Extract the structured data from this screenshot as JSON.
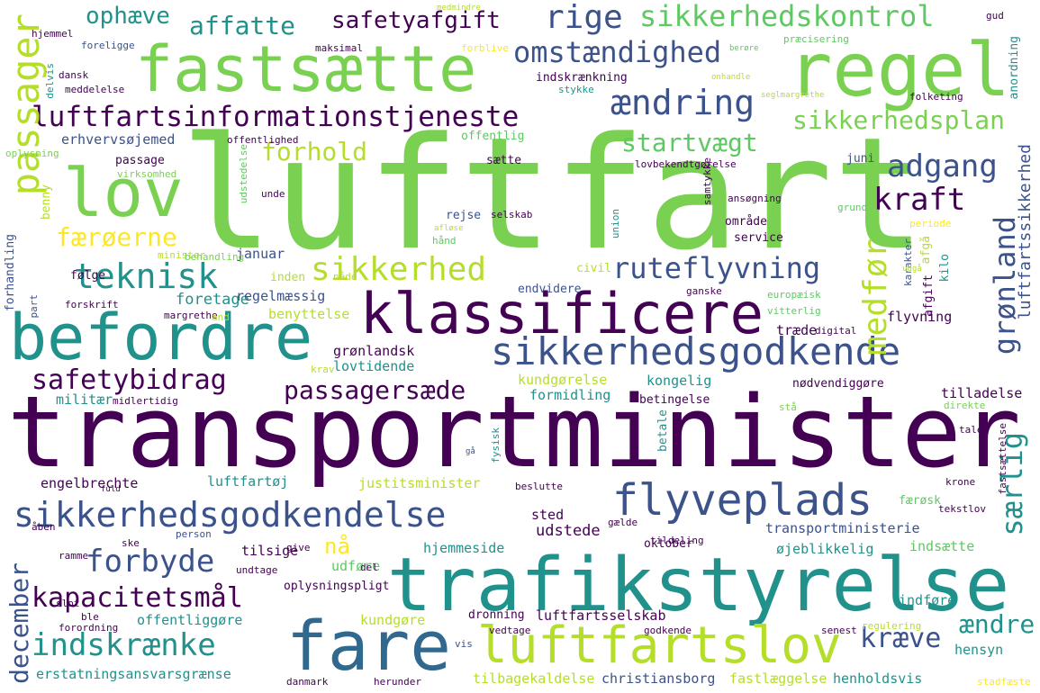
{
  "palette": {
    "dark_purple": "#440154",
    "indigo": "#3b528b",
    "teal": "#21918c",
    "green": "#5ec962",
    "yellow_green": "#7ad151",
    "yellow": "#fde725",
    "light_green": "#b5de2b"
  },
  "words": {
    "luftfart": "luftfart",
    "transportminister": "transportminister",
    "fastsaette": "fastsætte",
    "regel": "regel",
    "lov": "lov",
    "klassificere": "klassificere",
    "befordre": "befordre",
    "trafikstyrelse": "trafikstyrelse",
    "fare": "fare",
    "luftfartslov": "luftfartslov",
    "sikkerhedsgodkende": "sikkerhedsgodkende",
    "sikkerhedsgodkendelse": "sikkerhedsgodkendelse",
    "flyveplads": "flyveplads",
    "luftfartsinformationstjeneste": "luftfartsinformationstjeneste",
    "passager": "passager",
    "omstaendighed": "omstændighed",
    "aendring": "ændring",
    "rige": "rige",
    "sikkerhedskontrol": "sikkerhedskontrol",
    "safetyafgift": "safetyafgift",
    "affatte": "affatte",
    "ophaeve": "ophæve",
    "sikkerhedsplan": "sikkerhedsplan",
    "startvaegt": "startvægt",
    "adgang": "adgang",
    "kraft": "kraft",
    "forhold": "forhold",
    "faeroeerne": "færøerne",
    "teknisk": "teknisk",
    "sikkerhed": "sikkerhed",
    "ruteflyvning": "ruteflyvning",
    "medfoer": "medfør",
    "groenland": "grønland",
    "safetybidrag": "safetybidrag",
    "passagersaede": "passagersæde",
    "forbyde": "forbyde",
    "kapacitetsmaal": "kapacitetsmål",
    "indskraenke": "indskrænke",
    "kraeve": "kræve",
    "aendre": "ændre",
    "saerlig": "særlig",
    "naa": "nå",
    "december": "december",
    "luftfartssikkerhed": "luftfartssikkerhed",
    "erhvervsoejemed": "erhvervsøjemed",
    "offentlighed": "offentlighed",
    "offentlig": "offentlig",
    "oplysning": "oplysning",
    "passage": "passage",
    "saette": "sætte",
    "juni": "juni",
    "lovbekendtgoerelse": "lovbekendtgørelse",
    "virksomhed": "virksomhed",
    "udstedelse": "udstedelse",
    "benny": "benny",
    "unde": "unde",
    "samtykke": "samtykke",
    "ansoegning": "ansøgning",
    "grund": "grund",
    "rejse": "rejse",
    "selskab": "selskab",
    "union": "union",
    "aftale_naaende": "afløse",
    "haand": "hånd",
    "januar": "januar",
    "omraade": "område",
    "service": "service",
    "periode": "periode",
    "karakter": "karakter",
    "forhandling": "forhandling",
    "minister": "minister",
    "behandling": "behandling",
    "afgaa": "afgå",
    "kilo": "kilo",
    "afgift": "afgift",
    "foelge": "følge",
    "inden": "inden",
    "naade": "nåde",
    "civil": "civil",
    "udgaa": "udgå",
    "foretage": "foretage",
    "endvidere": "endvidere",
    "ganske": "ganske",
    "europaeisk": "europæisk",
    "part": "part",
    "forskrift": "forskrift",
    "regelmaessig": "regelmæssig",
    "margrethe": "margrethe",
    "and": "and",
    "benyttelse": "benyttelse",
    "vitterlig": "vitterlig",
    "flyvning": "flyvning",
    "digital": "digital",
    "groenlandsk": "grønlandsk",
    "traede": "træde",
    "lovtidende": "lovtidende",
    "krav": "krav",
    "kundgoerelse": "kundgørelse",
    "kongelig": "kongelig",
    "noedvendiggoere": "nødvendiggøre",
    "militaer": "militær",
    "midlertidig": "midlertidig",
    "formidling": "formidling",
    "betingelse": "betingelse",
    "tilladelse": "tilladelse",
    "staa": "stå",
    "direkte": "direkte",
    "betale": "betale",
    "fysisk": "fysisk",
    "tale": "tale",
    "gaa": "gå",
    "fastsaettelse": "fastsættelse",
    "engelbrechte": "engelbrechte",
    "luftfartoej": "luftfartøj",
    "justitsminister": "justitsminister",
    "beslutte": "beslutte",
    "krone": "krone",
    "fuld": "fuld",
    "faeroesk": "færøsk",
    "tekstlov": "tekstlov",
    "sted": "sted",
    "gaelde": "gælde",
    "udstede": "udstede",
    "transportministerie": "transportministerie",
    "aaben": "åben",
    "person": "person",
    "tildeling": "tildeling",
    "ske": "ske",
    "tilsige": "tilsige",
    "hjemmeside": "hjemmeside",
    "oktober": "oktober",
    "oejeblikkelig": "øjeblikkelig",
    "indsaette": "indsætte",
    "give": "give",
    "ramme": "ramme",
    "udfoere": "udføre",
    "del": "del",
    "undtage": "undtage",
    "oplysningspligt": "oplysningspligt",
    "slot": "slot",
    "indfoere": "indføre",
    "ble": "ble",
    "forordning": "forordning",
    "offentliggoere": "offentliggøre",
    "dronning": "dronning",
    "luftfartsselskab": "luftfartsselskab",
    "kundgoere": "kundgøre",
    "vedtage": "vedtage",
    "senest": "senest",
    "regulering": "regulering",
    "vis": "vis",
    "godkende": "godkende",
    "hensyn": "hensyn",
    "erstatningsansvarsgraense": "erstatningsansvarsgrænse",
    "danmark": "danmark",
    "herunder": "herunder",
    "tilbagekaldelse": "tilbagekaldelse",
    "christiansborg": "christiansborg",
    "fastlaeggelse": "fastlæggelse",
    "henholdsvis": "henholdsvis",
    "stadfaeste": "stadfæste",
    "medmindre": "medmindre",
    "gud": "gud",
    "hjemmel": "hjemmel",
    "foreligge": "foreligge",
    "maksimal": "maksimal",
    "beroere": "berøre",
    "praecisering": "præcisering",
    "dansk": "dansk",
    "delvis": "delvis",
    "meddelelse": "meddelelse",
    "forblive": "forblive",
    "indskraenkning": "indskrænkning",
    "stykke": "stykke",
    "onhandle": "onhandle",
    "seglmargrethe": "seglmargrethe",
    "folketing": "folketing",
    "anordning": "anordning"
  }
}
